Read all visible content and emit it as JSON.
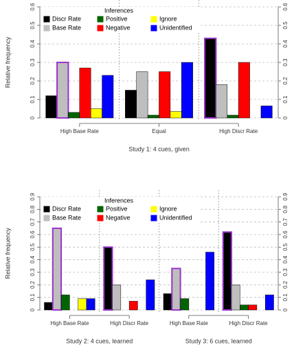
{
  "chart_data": [
    {
      "type": "bar",
      "ylabel": "Relative frequency",
      "legend_title": "Inferences",
      "categories": [
        "High Base Rate",
        "Equal",
        "High Discr Rate"
      ],
      "xlabels": [
        "Study 1: 4 cues, given"
      ],
      "series": [
        {
          "name": "Discr Rate",
          "color": "#000000",
          "values": [
            0.12,
            0.15,
            0.43
          ]
        },
        {
          "name": "Base Rate",
          "color": "#bebebe",
          "values": [
            0.3,
            0.25,
            0.18
          ]
        },
        {
          "name": "Positive",
          "color": "#006400",
          "values": [
            0.03,
            0.015,
            0.015
          ]
        },
        {
          "name": "Negative",
          "color": "#ff0000",
          "values": [
            0.27,
            0.25,
            0.3
          ]
        },
        {
          "name": "Ignore",
          "color": "#ffff00",
          "values": [
            0.05,
            0.035,
            0
          ]
        },
        {
          "name": "Unidentified",
          "color": "#0000ff",
          "values": [
            0.23,
            0.3,
            0.065
          ]
        }
      ],
      "highlight": [
        1,
        null,
        0
      ],
      "highlight_color": "#9933cc",
      "ylim": [
        0,
        0.6
      ],
      "yticks": [
        0,
        0.1,
        0.2,
        0.3,
        0.4,
        0.5,
        0.6
      ],
      "grid": true
    },
    {
      "type": "bar",
      "ylabel": "Relative frequency",
      "legend_title": "Inferences",
      "categories": [
        "High Base Rate",
        "High Discr Rate",
        "High Base Rate",
        "High Discr Rate"
      ],
      "xlabels": [
        "Study 2: 4 cues, learned",
        "Study 3: 6 cues, learned"
      ],
      "series": [
        {
          "name": "Discr Rate",
          "color": "#000000",
          "values": [
            0.06,
            0.5,
            0.13,
            0.62
          ]
        },
        {
          "name": "Base Rate",
          "color": "#bebebe",
          "values": [
            0.65,
            0.2,
            0.33,
            0.2
          ]
        },
        {
          "name": "Positive",
          "color": "#006400",
          "values": [
            0.12,
            0,
            0.09,
            0.04
          ]
        },
        {
          "name": "Negative",
          "color": "#ff0000",
          "values": [
            0,
            0.07,
            0,
            0.04
          ]
        },
        {
          "name": "Ignore",
          "color": "#ffff00",
          "values": [
            0.09,
            0,
            0,
            0
          ]
        },
        {
          "name": "Unidentified",
          "color": "#0000ff",
          "values": [
            0.09,
            0.24,
            0.46,
            0.12
          ]
        }
      ],
      "highlight": [
        1,
        0,
        1,
        0
      ],
      "highlight_color": "#9933cc",
      "ylim": [
        0,
        0.9
      ],
      "yticks": [
        0,
        0.1,
        0.2,
        0.3,
        0.4,
        0.5,
        0.6,
        0.7,
        0.8,
        0.9
      ],
      "grid": true
    }
  ]
}
